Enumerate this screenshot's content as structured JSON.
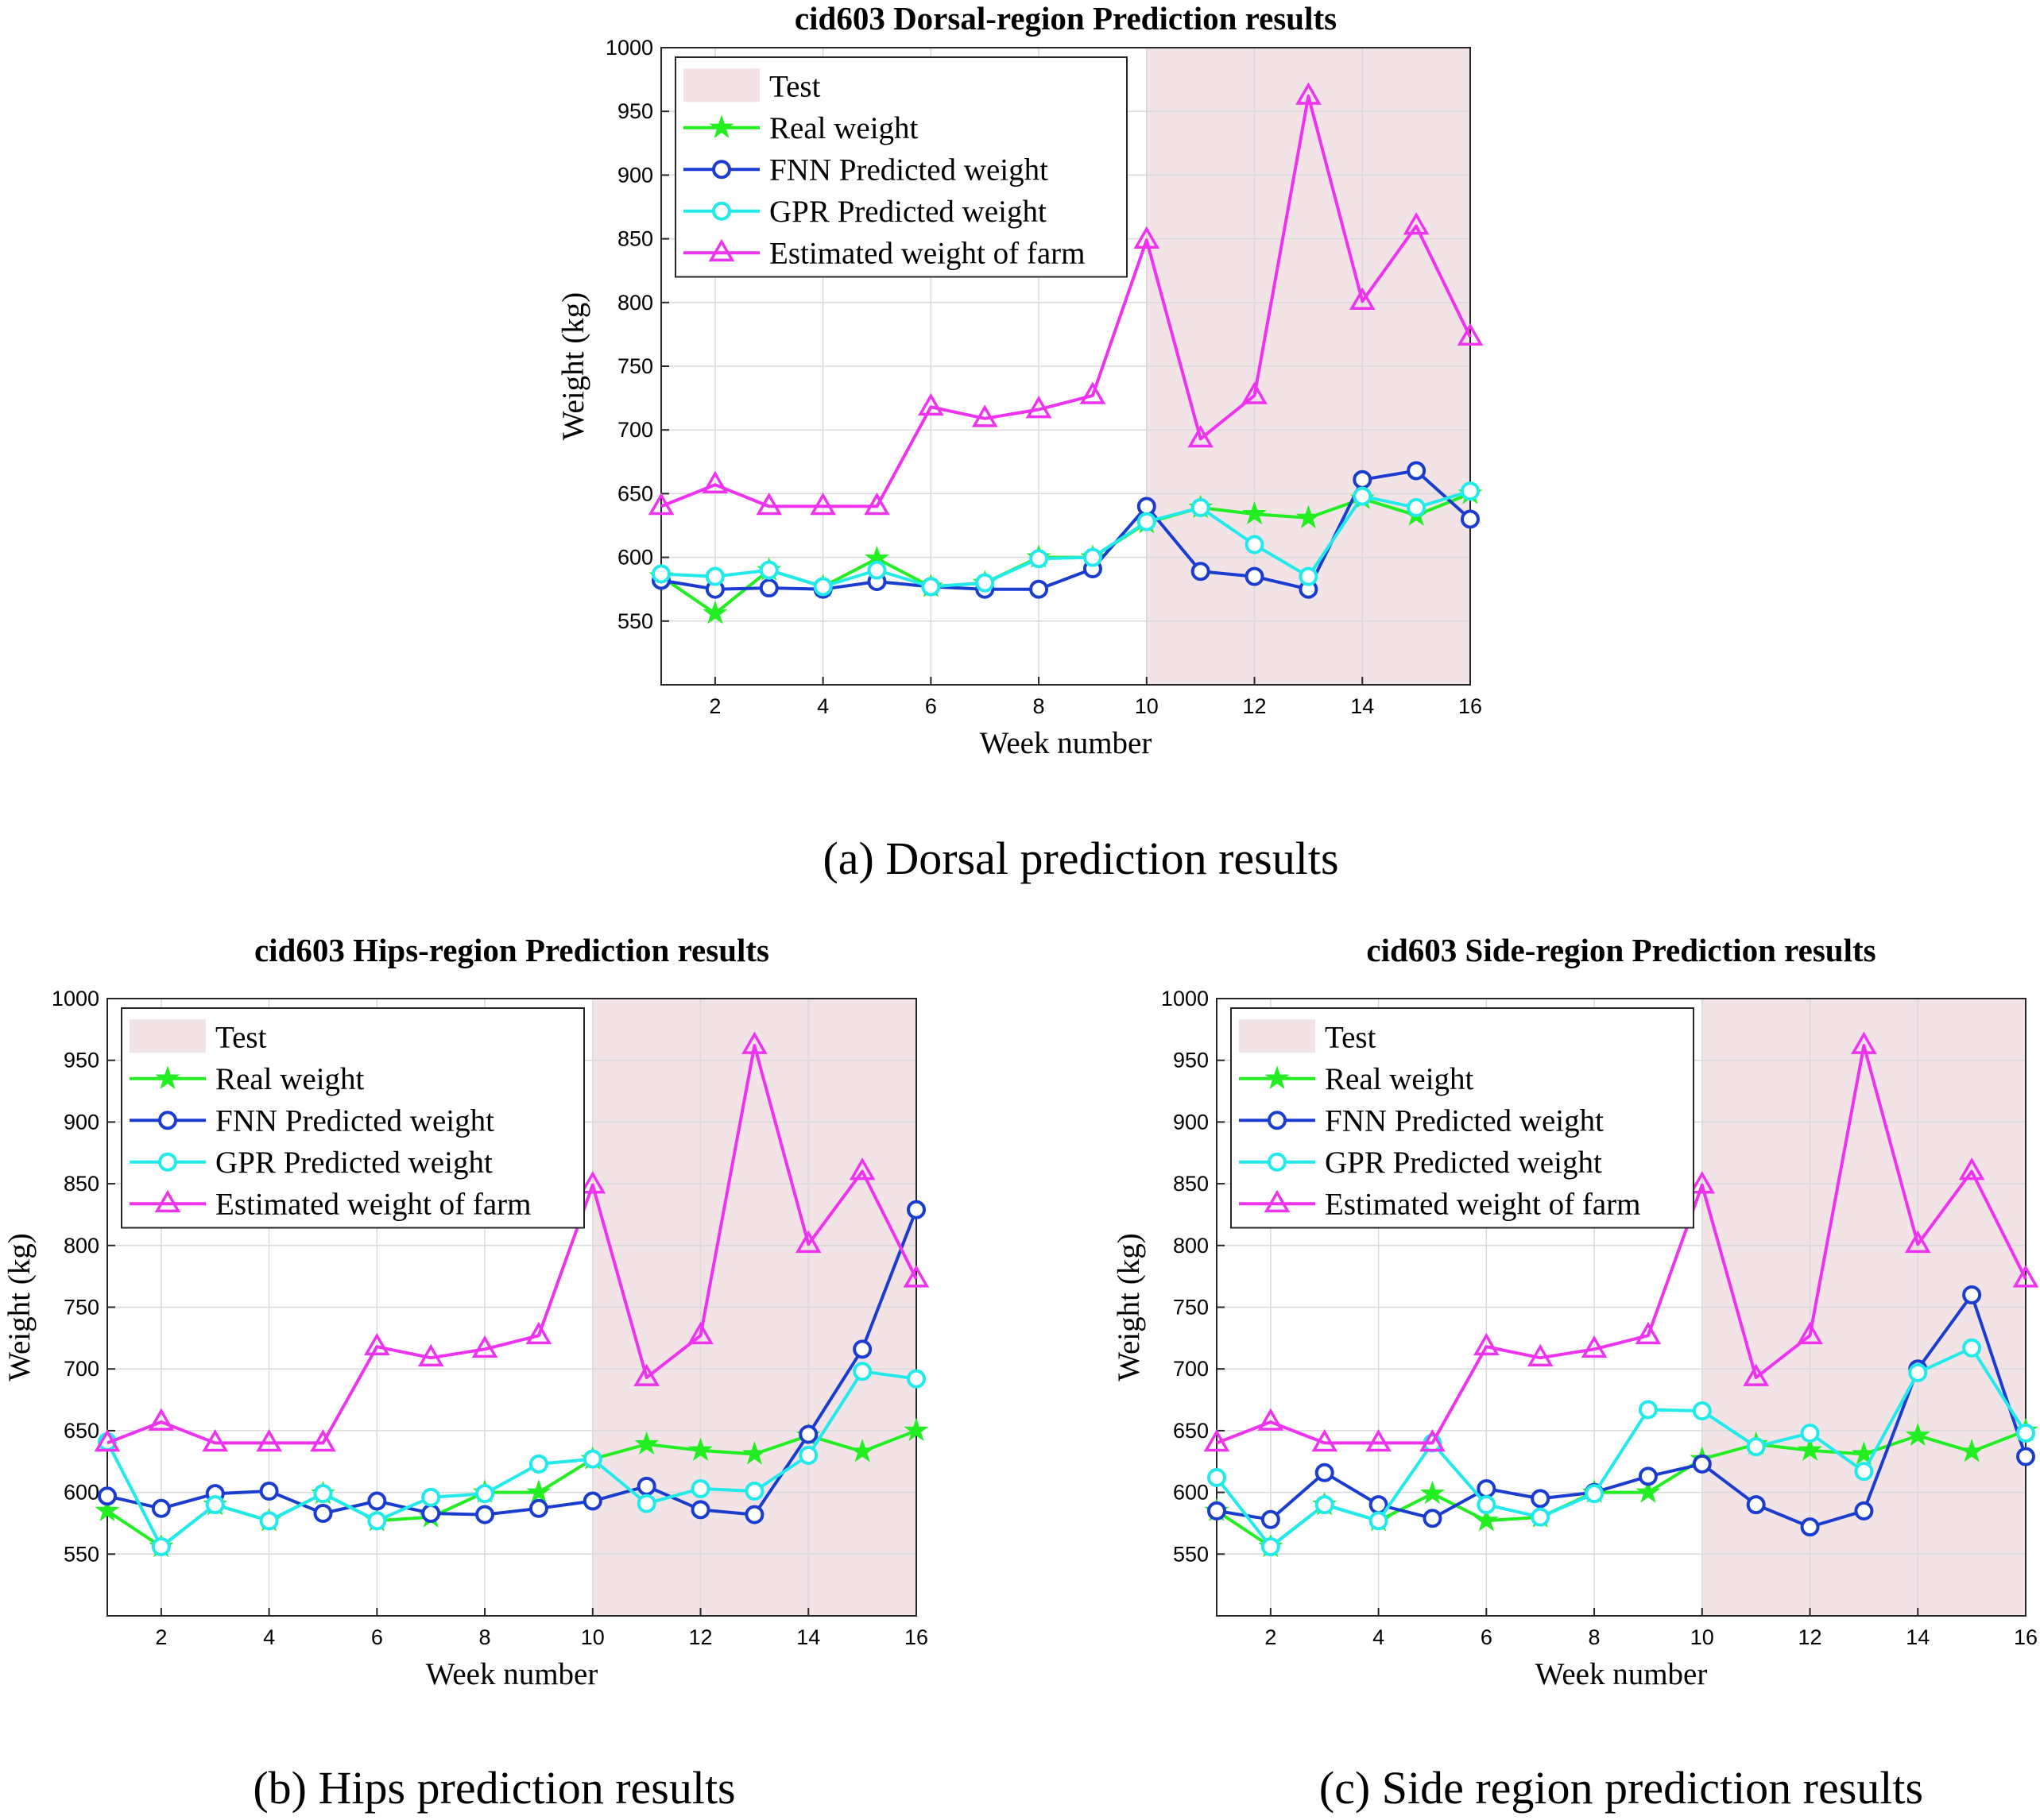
{
  "chart_data": [
    {
      "type": "line",
      "title": "cid603 Dorsal-region Prediction results",
      "caption": "(a) Dorsal prediction results",
      "xlabel": "Week number",
      "ylabel": "Weight (kg)",
      "xlim": [
        1,
        16
      ],
      "ylim": [
        500,
        1000
      ],
      "xticks": [
        2,
        4,
        6,
        8,
        10,
        12,
        14,
        16
      ],
      "yticks": [
        550,
        600,
        650,
        700,
        750,
        800,
        850,
        900,
        950,
        1000
      ],
      "grid": true,
      "legend_position": "top-left",
      "test_region": {
        "label": "Test",
        "x_start": 10,
        "x_end": 16,
        "color": "#f2e3e6"
      },
      "x": [
        1,
        2,
        3,
        4,
        5,
        6,
        7,
        8,
        9,
        10,
        11,
        12,
        13,
        14,
        15,
        16
      ],
      "series": [
        {
          "name": "Real weight",
          "marker": "star",
          "color": "#22ee22",
          "values": [
            585,
            556,
            590,
            577,
            599,
            577,
            580,
            600,
            600,
            627,
            639,
            634,
            631,
            646,
            633,
            650
          ]
        },
        {
          "name": "FNN Predicted weight",
          "marker": "circle",
          "color": "#1a3ccf",
          "values": [
            582,
            575,
            576,
            575,
            581,
            577,
            575,
            575,
            591,
            640,
            589,
            585,
            575,
            661,
            668,
            630
          ]
        },
        {
          "name": "GPR Predicted weight",
          "marker": "circle",
          "color": "#22eaea",
          "values": [
            587,
            585,
            590,
            577,
            590,
            577,
            580,
            599,
            600,
            628,
            639,
            610,
            585,
            648,
            639,
            652
          ]
        },
        {
          "name": "Estimated weight of farm",
          "marker": "triangle",
          "color": "#ee33ee",
          "values": [
            640,
            657,
            640,
            640,
            640,
            718,
            709,
            716,
            727,
            849,
            693,
            727,
            962,
            801,
            860,
            773
          ]
        }
      ]
    },
    {
      "type": "line",
      "title": "cid603 Hips-region Prediction results",
      "caption": "(b) Hips prediction results",
      "xlabel": "Week number",
      "ylabel": "Weight (kg)",
      "xlim": [
        1,
        16
      ],
      "ylim": [
        500,
        1000
      ],
      "xticks": [
        2,
        4,
        6,
        8,
        10,
        12,
        14,
        16
      ],
      "yticks": [
        550,
        600,
        650,
        700,
        750,
        800,
        850,
        900,
        950,
        1000
      ],
      "grid": true,
      "legend_position": "top-left",
      "test_region": {
        "label": "Test",
        "x_start": 10,
        "x_end": 16,
        "color": "#f2e3e6"
      },
      "x": [
        1,
        2,
        3,
        4,
        5,
        6,
        7,
        8,
        9,
        10,
        11,
        12,
        13,
        14,
        15,
        16
      ],
      "series": [
        {
          "name": "Real weight",
          "marker": "star",
          "color": "#22ee22",
          "values": [
            585,
            556,
            590,
            577,
            599,
            577,
            580,
            600,
            600,
            627,
            639,
            634,
            631,
            646,
            633,
            650
          ]
        },
        {
          "name": "FNN Predicted weight",
          "marker": "circle",
          "color": "#1a3ccf",
          "values": [
            597,
            587,
            599,
            601,
            583,
            593,
            583,
            582,
            587,
            593,
            605,
            586,
            582,
            647,
            716,
            829
          ]
        },
        {
          "name": "GPR Predicted weight",
          "marker": "circle",
          "color": "#22eaea",
          "values": [
            641,
            556,
            590,
            577,
            599,
            577,
            596,
            599,
            623,
            627,
            591,
            603,
            601,
            630,
            698,
            692
          ]
        },
        {
          "name": "Estimated weight of farm",
          "marker": "triangle",
          "color": "#ee33ee",
          "values": [
            640,
            657,
            640,
            640,
            640,
            718,
            709,
            716,
            727,
            849,
            693,
            727,
            962,
            801,
            860,
            773
          ]
        }
      ]
    },
    {
      "type": "line",
      "title": "cid603 Side-region Prediction results",
      "caption": "(c) Side region prediction results",
      "xlabel": "Week number",
      "ylabel": "Weight (kg)",
      "xlim": [
        1,
        16
      ],
      "ylim": [
        500,
        1000
      ],
      "xticks": [
        2,
        4,
        6,
        8,
        10,
        12,
        14,
        16
      ],
      "yticks": [
        550,
        600,
        650,
        700,
        750,
        800,
        850,
        900,
        950,
        1000
      ],
      "grid": true,
      "legend_position": "top-left",
      "test_region": {
        "label": "Test",
        "x_start": 10,
        "x_end": 16,
        "color": "#f2e3e6"
      },
      "x": [
        1,
        2,
        3,
        4,
        5,
        6,
        7,
        8,
        9,
        10,
        11,
        12,
        13,
        14,
        15,
        16
      ],
      "series": [
        {
          "name": "Real weight",
          "marker": "star",
          "color": "#22ee22",
          "values": [
            585,
            556,
            590,
            577,
            599,
            577,
            580,
            600,
            600,
            627,
            639,
            634,
            631,
            646,
            633,
            650
          ]
        },
        {
          "name": "FNN Predicted weight",
          "marker": "circle",
          "color": "#1a3ccf",
          "values": [
            585,
            578,
            616,
            590,
            579,
            603,
            595,
            600,
            613,
            623,
            590,
            572,
            585,
            700,
            760,
            629
          ]
        },
        {
          "name": "GPR Predicted weight",
          "marker": "circle",
          "color": "#22eaea",
          "values": [
            612,
            556,
            590,
            577,
            640,
            590,
            580,
            599,
            667,
            666,
            637,
            648,
            617,
            697,
            717,
            648
          ]
        },
        {
          "name": "Estimated weight of farm",
          "marker": "triangle",
          "color": "#ee33ee",
          "values": [
            640,
            657,
            640,
            640,
            640,
            718,
            709,
            716,
            727,
            849,
            693,
            727,
            962,
            801,
            860,
            773
          ]
        }
      ]
    }
  ]
}
